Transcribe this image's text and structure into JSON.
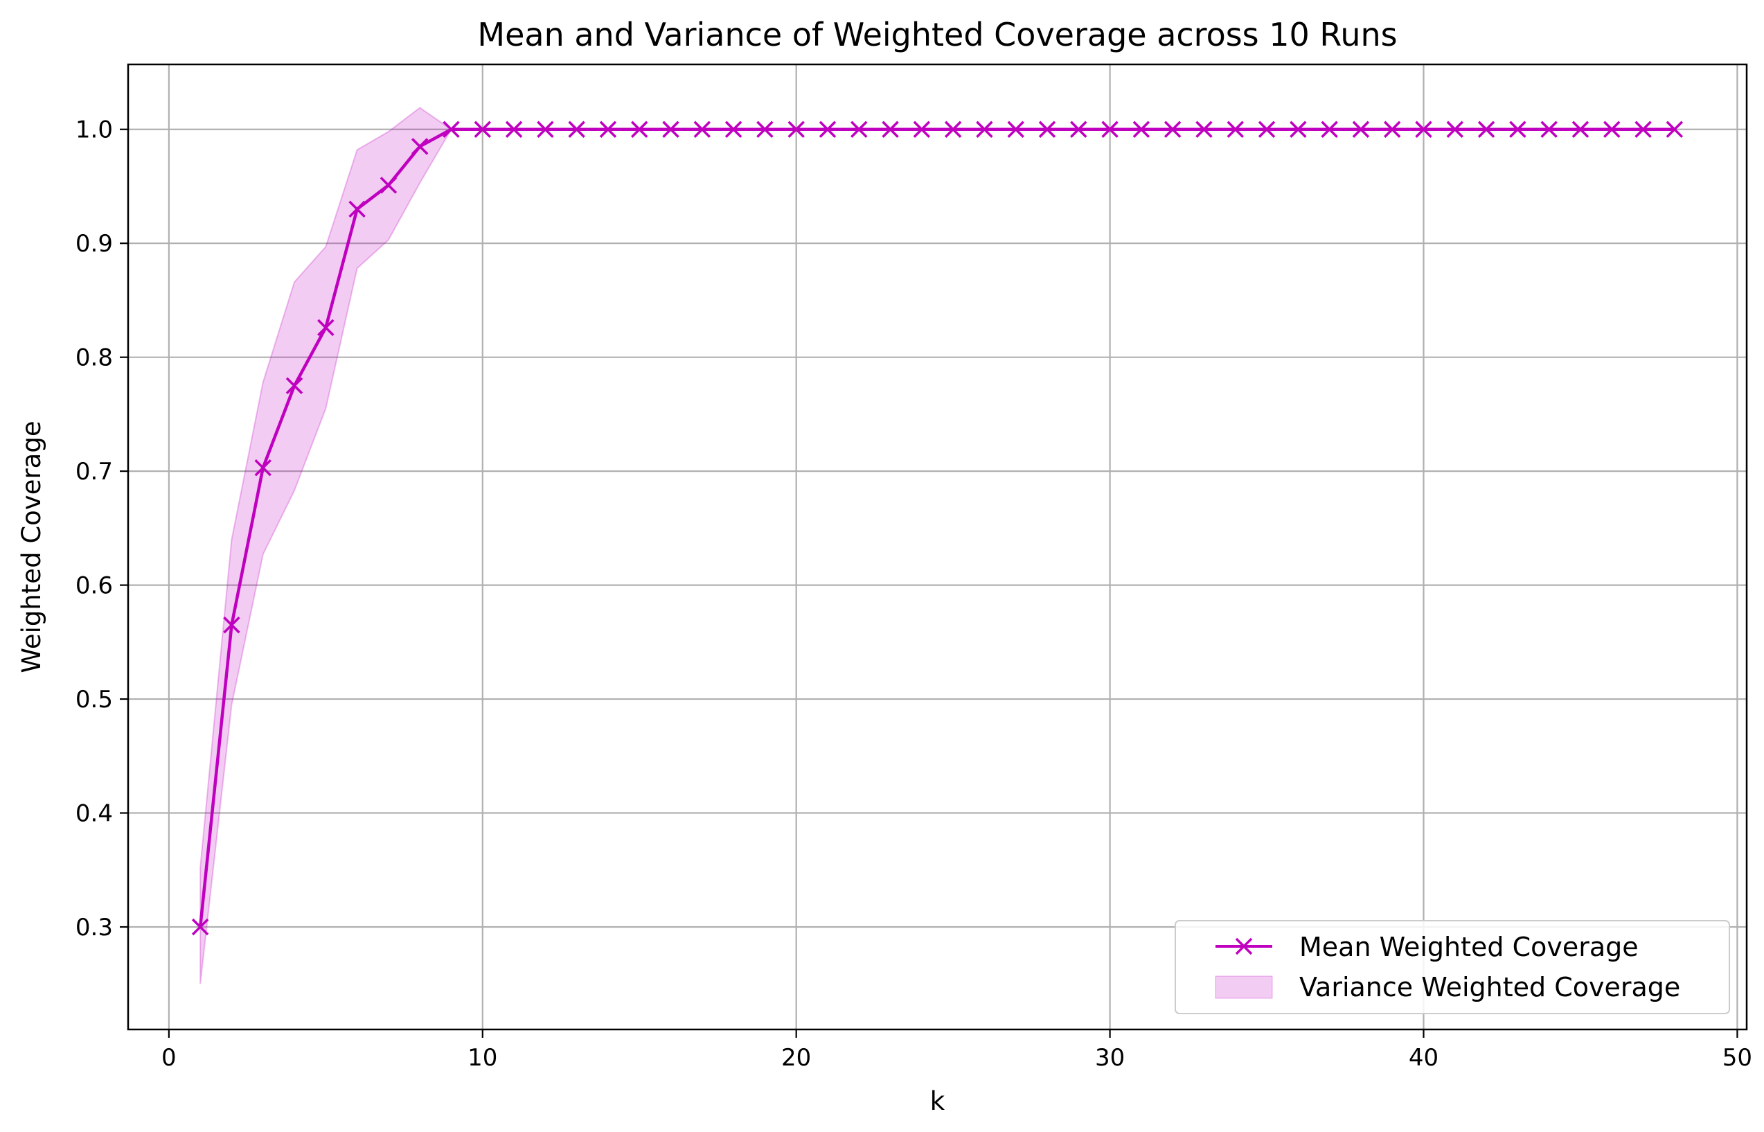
{
  "chart_data": {
    "type": "line",
    "title": "Mean and Variance of Weighted Coverage across 10 Runs",
    "xlabel": "k",
    "ylabel": "Weighted Coverage",
    "xlim": [
      -1.3,
      50.3
    ],
    "ylim": [
      0.21,
      1.057
    ],
    "xticks": [
      0,
      10,
      20,
      30,
      40,
      50
    ],
    "yticks": [
      0.3,
      0.4,
      0.5,
      0.6,
      0.7,
      0.8,
      0.9,
      1.0
    ],
    "xtick_labels": [
      "0",
      "10",
      "20",
      "30",
      "40",
      "50"
    ],
    "ytick_labels": [
      "0.3",
      "0.4",
      "0.5",
      "0.6",
      "0.7",
      "0.8",
      "0.9",
      "1.0"
    ],
    "grid": true,
    "legend_position": "lower-right",
    "colors": {
      "line": "#bf00bf",
      "band": "#bf00bf",
      "grid": "#b0b0b0"
    },
    "series": [
      {
        "name": "Mean Weighted Coverage",
        "marker": "x",
        "x": [
          1,
          2,
          3,
          4,
          5,
          6,
          7,
          8,
          9,
          10,
          11,
          12,
          13,
          14,
          15,
          16,
          17,
          18,
          19,
          20,
          21,
          22,
          23,
          24,
          25,
          26,
          27,
          28,
          29,
          30,
          31,
          32,
          33,
          34,
          35,
          36,
          37,
          38,
          39,
          40,
          41,
          42,
          43,
          44,
          45,
          46,
          47,
          48
        ],
        "values": [
          0.3,
          0.565,
          0.703,
          0.775,
          0.826,
          0.93,
          0.951,
          0.985,
          1.0,
          1.0,
          1.0,
          1.0,
          1.0,
          1.0,
          1.0,
          1.0,
          1.0,
          1.0,
          1.0,
          1.0,
          1.0,
          1.0,
          1.0,
          1.0,
          1.0,
          1.0,
          1.0,
          1.0,
          1.0,
          1.0,
          1.0,
          1.0,
          1.0,
          1.0,
          1.0,
          1.0,
          1.0,
          1.0,
          1.0,
          1.0,
          1.0,
          1.0,
          1.0,
          1.0,
          1.0,
          1.0,
          1.0,
          1.0
        ]
      },
      {
        "name": "Variance Weighted Coverage",
        "type": "band",
        "x": [
          1,
          2,
          3,
          4,
          5,
          6,
          7,
          8,
          9
        ],
        "lower": [
          0.25,
          0.495,
          0.627,
          0.683,
          0.755,
          0.878,
          0.903,
          0.953,
          1.0
        ],
        "upper": [
          0.352,
          0.64,
          0.778,
          0.866,
          0.897,
          0.982,
          0.998,
          1.019,
          1.0
        ]
      }
    ]
  }
}
